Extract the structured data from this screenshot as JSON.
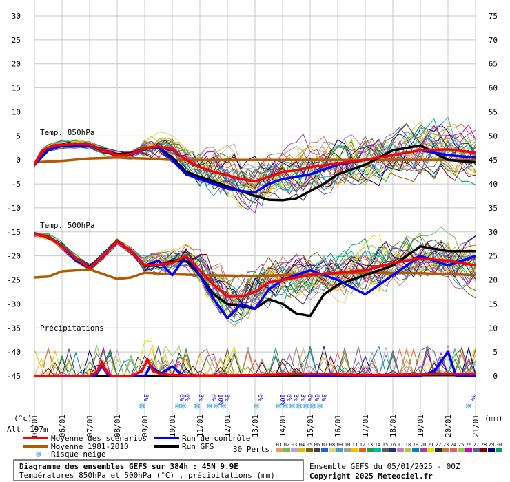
{
  "chart_data": {
    "type": "line",
    "title": "Diagramme des ensembles GEFS sur 384h : 45N 9.9E",
    "subtitle": "Températures 850hPa et 500hPa (°C) , précipitations (mm)",
    "run_label": "Ensemble GEFS du 05/01/2025 - 00Z",
    "copyright": "Copyright 2025 Meteociel.fr",
    "altitude": "Alt. 197m",
    "left_axis_unit": "(°c)",
    "right_axis_unit": "(mm)",
    "left_ticks": [
      30,
      25,
      20,
      15,
      10,
      5,
      0,
      -5,
      -10,
      -15,
      -20,
      -25,
      -30,
      -35,
      -40,
      -45
    ],
    "right_ticks": [
      75,
      70,
      65,
      60,
      55,
      50,
      45,
      40,
      35,
      30,
      25,
      20,
      15,
      10,
      5,
      0
    ],
    "ylim": [
      -45,
      30
    ],
    "x_labels": [
      "05/01",
      "06/01",
      "07/01",
      "08/01",
      "09/01",
      "10/01",
      "11/01",
      "12/01",
      "13/01",
      "14/01",
      "15/01",
      "16/01",
      "17/01",
      "18/01",
      "19/01",
      "20/01",
      "21/01"
    ],
    "sections": {
      "t850": "Temp. 850hPa",
      "t500": "Temp. 500hPa",
      "precip": "Précipitations"
    },
    "snow_risk": [
      {
        "day": 3.9,
        "pct": "3%"
      },
      {
        "day": 5.2,
        "pct": "6%"
      },
      {
        "day": 5.4,
        "pct": "6%"
      },
      {
        "day": 5.9,
        "pct": "3%"
      },
      {
        "day": 6.35,
        "pct": "6%"
      },
      {
        "day": 6.6,
        "pct": "10%"
      },
      {
        "day": 6.85,
        "pct": "3%"
      },
      {
        "day": 8.05,
        "pct": "6%"
      },
      {
        "day": 8.85,
        "pct": "10%"
      },
      {
        "day": 9.1,
        "pct": "6%"
      },
      {
        "day": 9.35,
        "pct": "3%"
      },
      {
        "day": 9.6,
        "pct": "3%"
      },
      {
        "day": 9.85,
        "pct": "6%"
      },
      {
        "day": 10.1,
        "pct": "6%"
      },
      {
        "day": 10.35,
        "pct": "3%"
      },
      {
        "day": 15.75,
        "pct": "3%"
      }
    ],
    "series": [
      {
        "name": "Moyenne des scénarios",
        "color": "#ff0000",
        "t850": [
          [
            0,
            -1
          ],
          [
            0.3,
            2
          ],
          [
            0.7,
            3
          ],
          [
            1.5,
            3.3
          ],
          [
            2,
            3.2
          ],
          [
            2.5,
            2
          ],
          [
            3,
            1
          ],
          [
            3.5,
            1.2
          ],
          [
            4,
            2.5
          ],
          [
            4.5,
            2.8
          ],
          [
            5,
            2.2
          ],
          [
            5.5,
            0
          ],
          [
            6,
            -1.5
          ],
          [
            6.5,
            -2.5
          ],
          [
            7,
            -3.2
          ],
          [
            7.5,
            -4
          ],
          [
            8,
            -4.5
          ],
          [
            8.5,
            -3.5
          ],
          [
            9,
            -2.5
          ],
          [
            9.5,
            -2.2
          ],
          [
            10,
            -1.5
          ],
          [
            11,
            -0.7
          ],
          [
            12,
            0
          ],
          [
            13,
            1
          ],
          [
            14,
            2
          ],
          [
            15,
            2.2
          ],
          [
            16,
            1.5
          ]
        ],
        "t500": [
          [
            0,
            -15.5
          ],
          [
            0.5,
            -16
          ],
          [
            1,
            -18
          ],
          [
            1.5,
            -20.5
          ],
          [
            2,
            -22.5
          ],
          [
            2.5,
            -20
          ],
          [
            3,
            -17
          ],
          [
            3.5,
            -19
          ],
          [
            4,
            -22
          ],
          [
            4.5,
            -21.8
          ],
          [
            5,
            -21.5
          ],
          [
            5.5,
            -20
          ],
          [
            6,
            -23
          ],
          [
            6.5,
            -26
          ],
          [
            7,
            -28.5
          ],
          [
            7.5,
            -28.5
          ],
          [
            8,
            -27.5
          ],
          [
            8.5,
            -25.5
          ],
          [
            9,
            -25
          ],
          [
            10,
            -24
          ],
          [
            11,
            -23.5
          ],
          [
            12,
            -23
          ],
          [
            13,
            -21.5
          ],
          [
            14,
            -20.5
          ],
          [
            15,
            -21
          ],
          [
            16,
            -22
          ]
        ],
        "precip": [
          [
            0,
            0
          ],
          [
            2,
            0
          ],
          [
            2.3,
            1
          ],
          [
            2.45,
            3
          ],
          [
            2.6,
            1
          ],
          [
            2.8,
            0
          ],
          [
            3.5,
            0
          ],
          [
            3.9,
            1
          ],
          [
            4.1,
            3.5
          ],
          [
            4.3,
            1
          ],
          [
            4.6,
            0.4
          ],
          [
            5,
            0.2
          ],
          [
            6,
            0.1
          ],
          [
            8,
            0.2
          ],
          [
            9,
            0.3
          ],
          [
            10,
            0.5
          ],
          [
            11,
            0.3
          ],
          [
            12,
            0.2
          ],
          [
            14,
            0.3
          ],
          [
            15,
            0.5
          ],
          [
            16,
            0.4
          ]
        ]
      },
      {
        "name": "Moyenne 1981-2010",
        "color": "#b35900",
        "t850": [
          [
            0,
            -0.5
          ],
          [
            1,
            -0.2
          ],
          [
            2,
            0.3
          ],
          [
            3,
            0.5
          ],
          [
            4,
            0.3
          ],
          [
            5,
            0
          ],
          [
            6,
            0
          ],
          [
            8,
            0
          ],
          [
            10,
            0
          ],
          [
            12,
            0
          ],
          [
            14,
            0
          ],
          [
            16,
            0
          ]
        ],
        "t500": [
          [
            0,
            -24.5
          ],
          [
            0.5,
            -24.3
          ],
          [
            1,
            -23.2
          ],
          [
            2,
            -22.8
          ],
          [
            2.5,
            -23.8
          ],
          [
            3,
            -24.8
          ],
          [
            3.5,
            -24.5
          ],
          [
            4,
            -23.5
          ],
          [
            5,
            -23.8
          ],
          [
            6,
            -24
          ],
          [
            8,
            -24.2
          ],
          [
            10,
            -23.8
          ],
          [
            12,
            -23.5
          ],
          [
            14,
            -23.6
          ],
          [
            16,
            -24
          ]
        ]
      },
      {
        "name": "Run de contrôle",
        "color": "#0000ff",
        "t850": [
          [
            0,
            -1
          ],
          [
            0.5,
            2
          ],
          [
            1,
            3
          ],
          [
            2,
            3
          ],
          [
            2.5,
            2
          ],
          [
            3,
            1
          ],
          [
            3.5,
            1
          ],
          [
            4,
            2.5
          ],
          [
            4.5,
            2.5
          ],
          [
            5,
            0
          ],
          [
            5.5,
            -3
          ],
          [
            6,
            -4
          ],
          [
            6.5,
            -5
          ],
          [
            7,
            -6
          ],
          [
            7.5,
            -6.5
          ],
          [
            8,
            -6.8
          ],
          [
            8.5,
            -5
          ],
          [
            9,
            -4
          ],
          [
            10,
            -3
          ],
          [
            11,
            -1
          ],
          [
            12,
            0
          ],
          [
            13,
            1
          ],
          [
            14,
            2
          ],
          [
            15,
            1
          ],
          [
            16,
            0.5
          ]
        ],
        "t500": [
          [
            0,
            -15.5
          ],
          [
            0.5,
            -16
          ],
          [
            1,
            -18
          ],
          [
            1.5,
            -21
          ],
          [
            2,
            -22.5
          ],
          [
            2.5,
            -20
          ],
          [
            3,
            -17
          ],
          [
            3.5,
            -19
          ],
          [
            4,
            -22
          ],
          [
            4.5,
            -21
          ],
          [
            5,
            -24
          ],
          [
            5.5,
            -20
          ],
          [
            6,
            -24
          ],
          [
            6.5,
            -29
          ],
          [
            7,
            -33
          ],
          [
            7.5,
            -30
          ],
          [
            8,
            -31
          ],
          [
            8.5,
            -27
          ],
          [
            9,
            -25
          ],
          [
            10,
            -23
          ],
          [
            11,
            -25
          ],
          [
            12,
            -28
          ],
          [
            13,
            -24
          ],
          [
            14,
            -20
          ],
          [
            15,
            -22
          ],
          [
            16,
            -20
          ]
        ],
        "precip": [
          [
            0,
            0
          ],
          [
            2.2,
            0
          ],
          [
            2.45,
            2
          ],
          [
            2.7,
            0
          ],
          [
            4,
            0
          ],
          [
            4.2,
            2
          ],
          [
            4.6,
            0.5
          ],
          [
            5,
            2
          ],
          [
            5.4,
            0
          ],
          [
            8,
            0
          ],
          [
            9.5,
            0.5
          ],
          [
            10,
            0
          ],
          [
            14,
            0
          ],
          [
            14.5,
            1
          ],
          [
            15,
            5
          ],
          [
            15.3,
            0
          ],
          [
            16,
            0
          ]
        ]
      },
      {
        "name": "Run GFS",
        "color": "#000000",
        "t850": [
          [
            0,
            -1
          ],
          [
            0.5,
            2
          ],
          [
            1,
            3
          ],
          [
            2,
            3.2
          ],
          [
            2.5,
            2
          ],
          [
            3,
            1.2
          ],
          [
            3.5,
            1.3
          ],
          [
            4,
            2.5
          ],
          [
            4.5,
            2.6
          ],
          [
            5,
            0.5
          ],
          [
            5.5,
            -2.5
          ],
          [
            6,
            -3.5
          ],
          [
            6.5,
            -4.5
          ],
          [
            7,
            -5.5
          ],
          [
            7.5,
            -6.5
          ],
          [
            8,
            -7.5
          ],
          [
            8.5,
            -8.3
          ],
          [
            9,
            -8.4
          ],
          [
            9.5,
            -8
          ],
          [
            10,
            -6.5
          ],
          [
            10.5,
            -5
          ],
          [
            11,
            -3
          ],
          [
            12,
            -1
          ],
          [
            13,
            2
          ],
          [
            14,
            3
          ],
          [
            15,
            0
          ],
          [
            16,
            -0.5
          ]
        ],
        "t500": [
          [
            0,
            -15.5
          ],
          [
            0.5,
            -16
          ],
          [
            1,
            -18
          ],
          [
            1.5,
            -20.5
          ],
          [
            2,
            -22.5
          ],
          [
            2.5,
            -20
          ],
          [
            3,
            -17
          ],
          [
            3.5,
            -19
          ],
          [
            4,
            -22
          ],
          [
            4.5,
            -22
          ],
          [
            5,
            -21
          ],
          [
            5.5,
            -21
          ],
          [
            6,
            -24
          ],
          [
            6.5,
            -28
          ],
          [
            7,
            -30
          ],
          [
            7.5,
            -30.5
          ],
          [
            8,
            -31
          ],
          [
            8.5,
            -29
          ],
          [
            9,
            -30
          ],
          [
            9.5,
            -32
          ],
          [
            10,
            -32.5
          ],
          [
            10.5,
            -28
          ],
          [
            11,
            -26
          ],
          [
            12,
            -24
          ],
          [
            13,
            -22
          ],
          [
            14,
            -18
          ],
          [
            15,
            -19
          ],
          [
            16,
            -19
          ]
        ],
        "precip": [
          [
            0,
            0
          ],
          [
            16,
            0.2
          ]
        ]
      }
    ],
    "perturbations_label": "30 Perts.",
    "perturbations": [
      {
        "id": "01",
        "color": "#e8a060"
      },
      {
        "id": "02",
        "color": "#70c050"
      },
      {
        "id": "03",
        "color": "#c0a0e0"
      },
      {
        "id": "04",
        "color": "#d8c000"
      },
      {
        "id": "05",
        "color": "#806000"
      },
      {
        "id": "06",
        "color": "#404040"
      },
      {
        "id": "07",
        "color": "#2060e0"
      },
      {
        "id": "08",
        "color": "#e0d080"
      },
      {
        "id": "09",
        "color": "#40a0c0"
      },
      {
        "id": "10",
        "color": "#a0a0a0"
      },
      {
        "id": "11",
        "color": "#f0c000"
      },
      {
        "id": "12",
        "color": "#e06020"
      },
      {
        "id": "13",
        "color": "#20a040"
      },
      {
        "id": "14",
        "color": "#00c0a0"
      },
      {
        "id": "15",
        "color": "#606060"
      },
      {
        "id": "16",
        "color": "#203080"
      },
      {
        "id": "17",
        "color": "#c080c0"
      },
      {
        "id": "18",
        "color": "#c0c040"
      },
      {
        "id": "19",
        "color": "#0080c0"
      },
      {
        "id": "20",
        "color": "#a040a0"
      },
      {
        "id": "21",
        "color": "#e0e000"
      },
      {
        "id": "22",
        "color": "#303030"
      },
      {
        "id": "23",
        "color": "#c08040"
      },
      {
        "id": "24",
        "color": "#e06060"
      },
      {
        "id": "25",
        "color": "#90d040"
      },
      {
        "id": "26",
        "color": "#d000d0"
      },
      {
        "id": "27",
        "color": "#606090"
      },
      {
        "id": "28",
        "color": "#800000"
      },
      {
        "id": "29",
        "color": "#000080"
      },
      {
        "id": "30",
        "color": "#00a060"
      }
    ]
  },
  "legend": {
    "mean": "Moyenne des scénarios",
    "clim": "Moyenne 1981-2010",
    "snow": "Risque neige",
    "control": "Run de contrôle",
    "gfs": "Run GFS"
  }
}
